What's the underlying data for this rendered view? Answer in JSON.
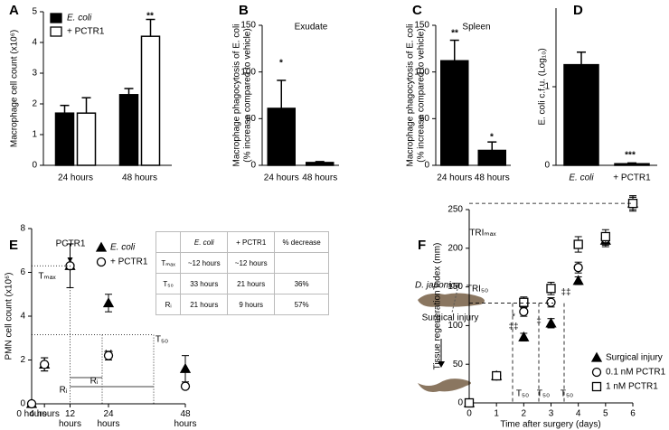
{
  "chart_data": [
    {
      "panel": "A",
      "type": "bar",
      "ylabel": "Macrophage cell count (x10⁶)",
      "categories": [
        "24 hours",
        "48 hours"
      ],
      "series": [
        {
          "name": "E. coli",
          "color": "#000000",
          "values": [
            1.7,
            2.3
          ],
          "errors": [
            0.25,
            0.2
          ]
        },
        {
          "name": "+ PCTR1",
          "color": "#ffffff",
          "values": [
            1.7,
            4.2
          ],
          "errors": [
            0.5,
            0.55
          ]
        }
      ],
      "ylim": [
        0,
        5
      ],
      "yticks": [
        0,
        1,
        2,
        3,
        4,
        5
      ],
      "annotations": [
        "**"
      ]
    },
    {
      "panel": "B",
      "type": "bar",
      "title": "Exudate",
      "ylabel": "Macrophage phagocytosis of E. coli",
      "ylabel2": "(% increase compared to vehicle)",
      "categories": [
        "24 hours",
        "48 hours"
      ],
      "values": [
        61,
        3
      ],
      "errors": [
        30,
        1
      ],
      "color": "#000000",
      "ylim": [
        0,
        150
      ],
      "yticks": [
        0,
        50,
        100,
        150
      ],
      "annotations": [
        "*"
      ]
    },
    {
      "panel": "C",
      "type": "bar",
      "title": "Spleen",
      "ylabel": "Macrophage phagocytosis of E. coli",
      "ylabel2": "(% increase compared to vehicle)",
      "categories": [
        "24 hours",
        "48 hours"
      ],
      "values": [
        112,
        16
      ],
      "errors": [
        22,
        9
      ],
      "color": "#000000",
      "ylim": [
        0,
        150
      ],
      "yticks": [
        0,
        50,
        100,
        150
      ],
      "annotations": [
        "**",
        "*"
      ]
    },
    {
      "panel": "D",
      "type": "bar",
      "ylabel": "E. coli c.f.u. (Log₁₀)",
      "categories": [
        "E. coli",
        "+ PCTR1"
      ],
      "values": [
        1.28,
        0.02
      ],
      "errors": [
        0.16,
        0.01
      ],
      "color": "#000000",
      "ylim": [
        0,
        2
      ],
      "yticks": [
        0,
        1
      ],
      "annotations": [
        "***"
      ]
    },
    {
      "panel": "E",
      "type": "line",
      "ylabel": "PMN cell count (x10⁶)",
      "x": [
        0,
        4,
        12,
        24,
        48
      ],
      "xlim": [
        0,
        48
      ],
      "xticks": [
        {
          "value": 0,
          "label": "0 hours"
        },
        {
          "value": 4,
          "label": "4 hours"
        },
        {
          "value": 12,
          "label": "12 hours"
        },
        {
          "value": 24,
          "label": "24 hours"
        },
        {
          "value": 48,
          "label": "48 hours"
        }
      ],
      "ylim": [
        0,
        8
      ],
      "yticks": [
        0,
        2,
        4,
        6,
        8
      ],
      "series": [
        {
          "name": "E. coli",
          "color": "#000000",
          "fill": "#000000",
          "marker": "triangle",
          "dash": false,
          "values": [
            0,
            1.8,
            6.3,
            4.6,
            1.6
          ],
          "errors": [
            0,
            0.3,
            1,
            0.4,
            0.6
          ]
        },
        {
          "name": "+ PCTR1",
          "color": "#000000",
          "fill": "#ffffff",
          "marker": "circle",
          "dash": true,
          "values": [
            0,
            1.8,
            6.3,
            2.2,
            0.8
          ],
          "errors": [
            0,
            0.3,
            1,
            0.2,
            0.1
          ]
        }
      ],
      "annotations": [
        "PCTR1",
        "Tₘₐₓ",
        "T₅₀",
        "Rᵢ",
        "Rᵢ",
        "‡†"
      ],
      "table": {
        "columns": [
          "E. coli",
          "+ PCTR1",
          "% decrease"
        ],
        "rows": [
          [
            "Tₘₐₓ",
            "~12 hours",
            "~12 hours"
          ],
          [
            "T₅₀",
            "33 hours",
            "21 hours",
            "36%"
          ],
          [
            "Rᵢ",
            "21 hours",
            "9 hours",
            "57%"
          ]
        ]
      }
    },
    {
      "panel": "F",
      "type": "line",
      "xlabel": "Time after surgery (days)",
      "ylabel": "Tissue regeneration index (mm)",
      "x": [
        0,
        1,
        2,
        3,
        4,
        5,
        6
      ],
      "xlim": [
        0,
        6
      ],
      "xticks": [
        0,
        1,
        2,
        3,
        4,
        5,
        6
      ],
      "ylim": [
        0,
        250
      ],
      "yticks": [
        0,
        50,
        100,
        150,
        200,
        250
      ],
      "series": [
        {
          "name": "Surgical injury",
          "color": "#000000",
          "fill": "#000000",
          "marker": "triangle",
          "dash": false,
          "values": [
            0,
            35,
            85,
            103,
            158,
            210,
            258
          ],
          "errors": [
            0,
            3,
            5,
            6,
            5,
            8,
            8
          ]
        },
        {
          "name": "0.1 nM PCTR1",
          "color": "#000000",
          "fill": "#ffffff",
          "marker": "circle",
          "dash": false,
          "values": [
            0,
            35,
            118,
            130,
            175,
            212,
            258
          ],
          "errors": [
            0,
            3,
            6,
            6,
            7,
            8,
            8
          ]
        },
        {
          "name": "1 nM PCTR1",
          "color": "#000000",
          "fill": "#ffffff",
          "marker": "square",
          "dash": false,
          "values": [
            0,
            35,
            130,
            148,
            205,
            215,
            258
          ],
          "errors": [
            0,
            3,
            7,
            8,
            10,
            9,
            10
          ]
        }
      ],
      "annotations": [
        "TRIₘₐₓ",
        "TRI₅₀",
        "T₅₀",
        "T₅₀",
        "T₅₀",
        "*",
        "‡‡",
        "‡",
        "‡‡",
        "D. japonica",
        "Surgical injury"
      ]
    }
  ]
}
